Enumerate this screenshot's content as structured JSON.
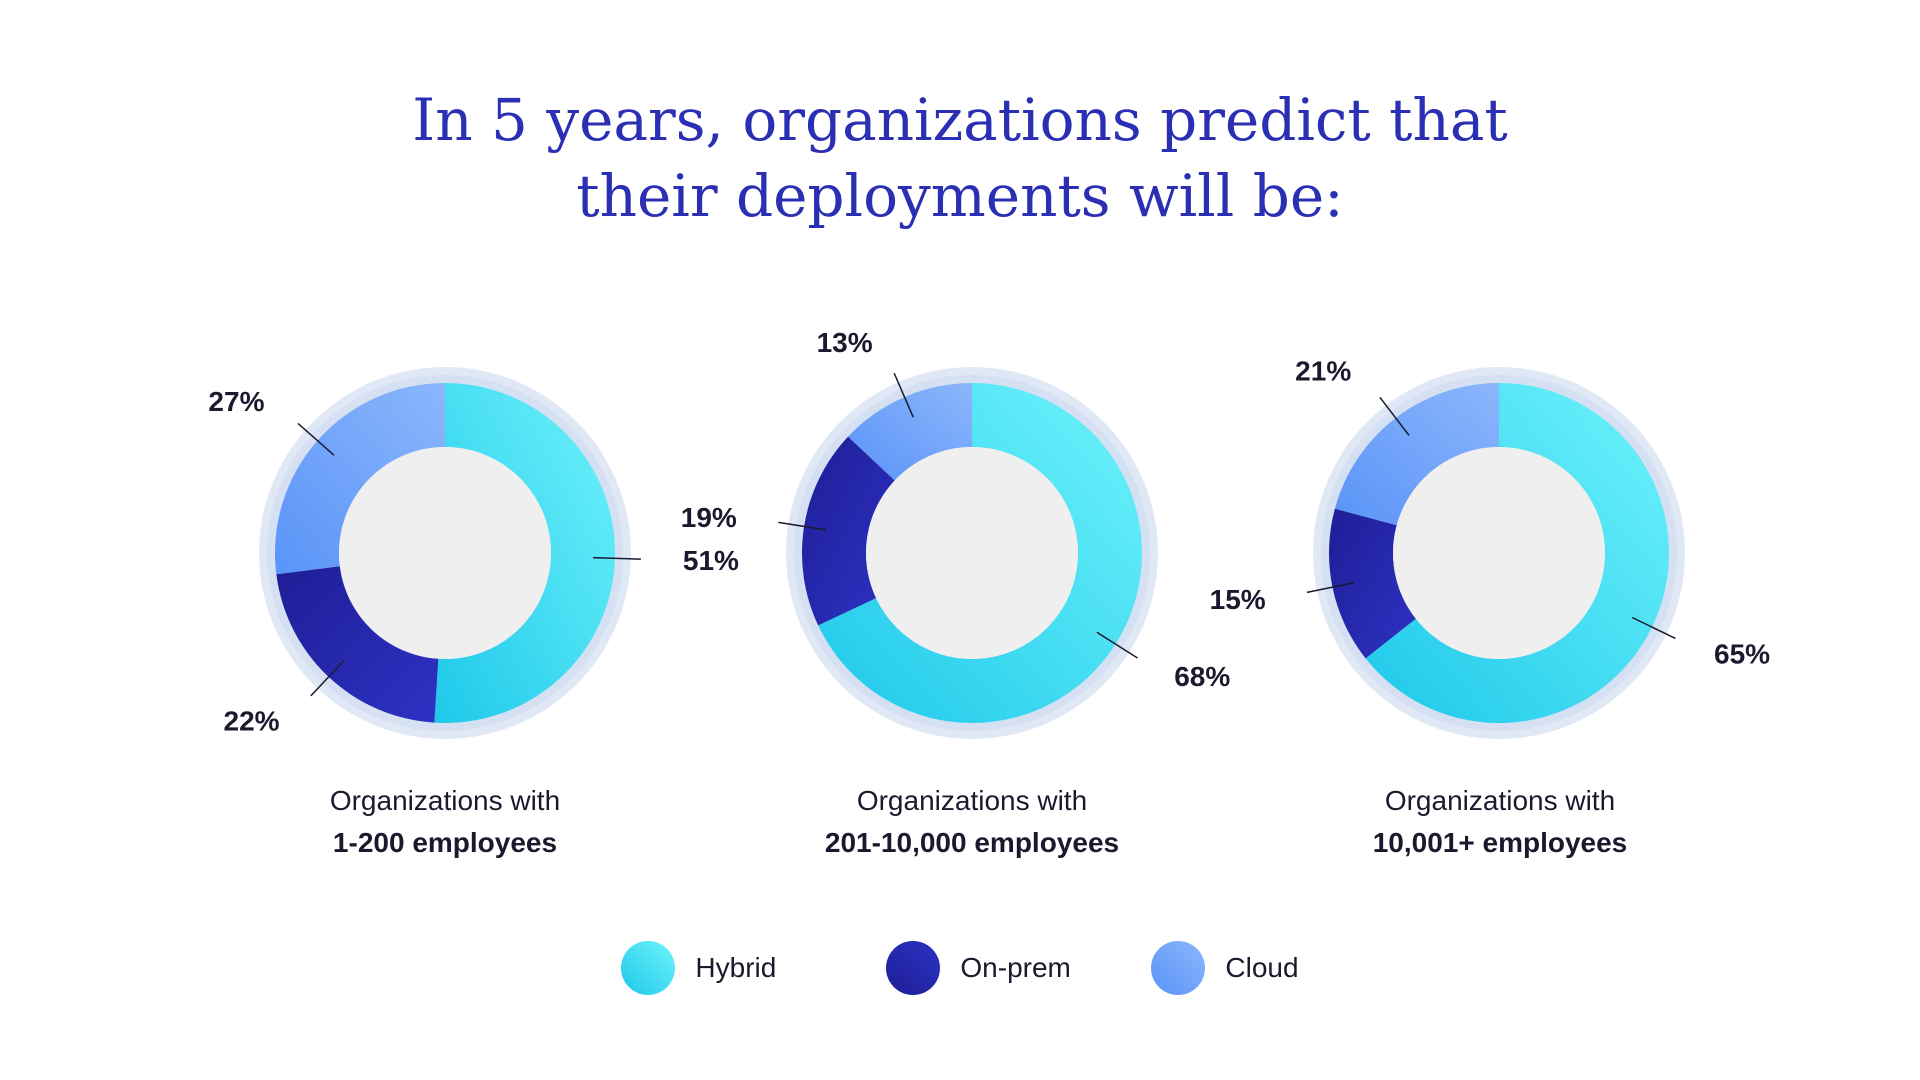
{
  "title": {
    "line1": "In 5 years, organizations predict that",
    "line2": "their deployments will be:"
  },
  "colors": {
    "Hybrid": "#2fd3ee",
    "On-prem": "#2424a8",
    "Cloud": "#6ea6fb",
    "center": "#efefef",
    "halo": "#dde5f5"
  },
  "legend": [
    {
      "name": "Hybrid",
      "label": "Hybrid"
    },
    {
      "name": "On-prem",
      "label": "On-prem"
    },
    {
      "name": "Cloud",
      "label": "Cloud"
    }
  ],
  "chart_data": [
    {
      "type": "pie",
      "title": "",
      "caption_line1": "Organizations with",
      "caption_line2": "1-200 employees",
      "slices": [
        {
          "name": "Hybrid",
          "value": 51,
          "label": "51%"
        },
        {
          "name": "On-prem",
          "value": 22,
          "label": "22%"
        },
        {
          "name": "Cloud",
          "value": 27,
          "label": "27%"
        }
      ]
    },
    {
      "type": "pie",
      "title": "",
      "caption_line1": "Organizations with",
      "caption_line2": "201-10,000 employees",
      "slices": [
        {
          "name": "Hybrid",
          "value": 68,
          "label": "68%"
        },
        {
          "name": "On-prem",
          "value": 19,
          "label": "19%"
        },
        {
          "name": "Cloud",
          "value": 13,
          "label": "13%"
        }
      ]
    },
    {
      "type": "pie",
      "title": "",
      "caption_line1": "Organizations with",
      "caption_line2": "10,001+ employees",
      "slices": [
        {
          "name": "Hybrid",
          "value": 65,
          "label": "65%"
        },
        {
          "name": "On-prem",
          "value": 15,
          "label": "15%"
        },
        {
          "name": "Cloud",
          "value": 21,
          "label": "21%"
        }
      ]
    }
  ]
}
